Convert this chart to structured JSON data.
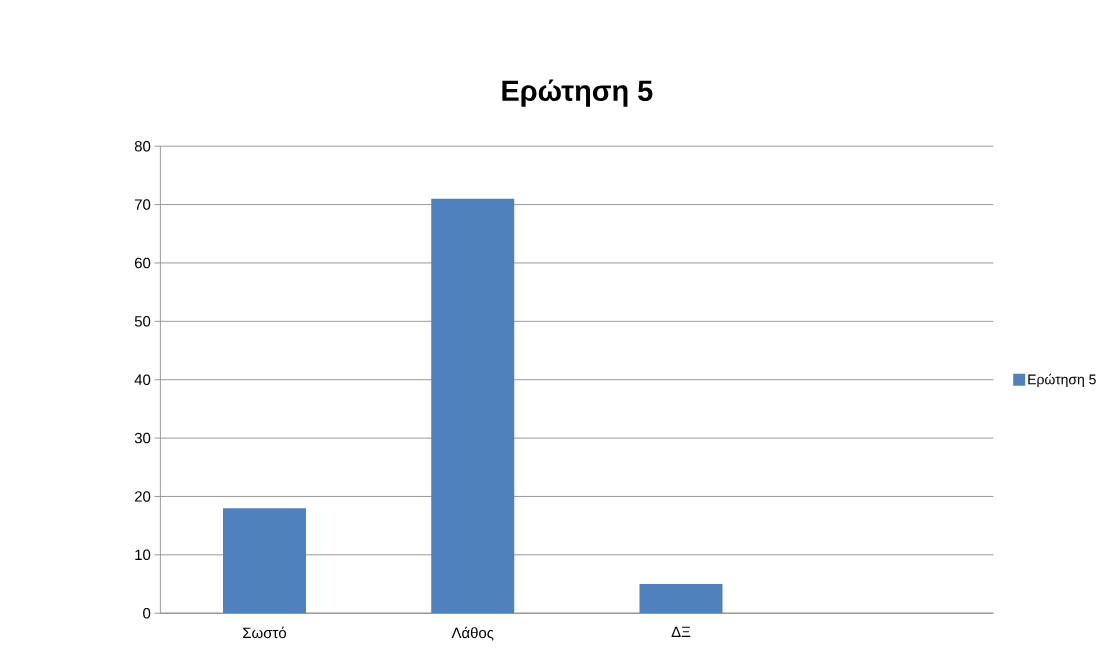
{
  "chart_data": {
    "type": "bar",
    "title": "Ερώτηση 5",
    "categories": [
      "Σωστό",
      "Λάθος",
      "ΔΞ",
      null
    ],
    "series": [
      {
        "name": "Ερώτηση 5",
        "color": "#4f81bd",
        "values": [
          18,
          71,
          5,
          null
        ]
      }
    ],
    "ylim": [
      0,
      80
    ],
    "yticks": [
      0,
      10,
      20,
      30,
      40,
      50,
      60,
      70,
      80
    ],
    "grid": "y",
    "legend": "right"
  }
}
